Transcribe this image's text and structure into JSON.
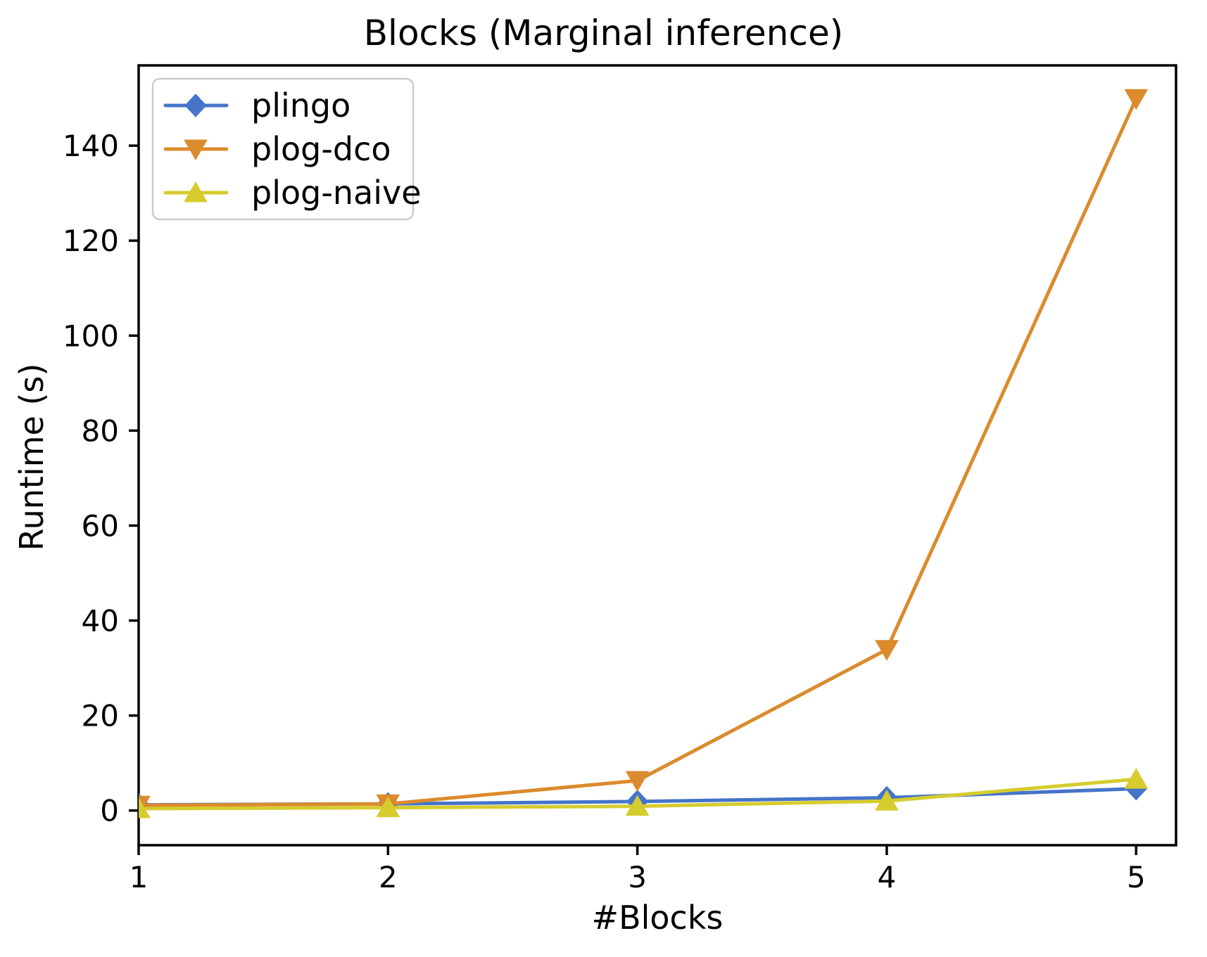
{
  "chart_data": {
    "type": "line",
    "title": "Blocks (Marginal inference)",
    "xlabel": "#Blocks",
    "ylabel": "Runtime (s)",
    "x": [
      1,
      2,
      3,
      4,
      5
    ],
    "xticks": [
      1,
      2,
      3,
      4,
      5
    ],
    "yticks": [
      0,
      20,
      40,
      60,
      80,
      100,
      120,
      140
    ],
    "xlim": [
      1,
      5.16
    ],
    "ylim": [
      -7.3,
      156.9
    ],
    "grid": false,
    "legend_position": "upper left",
    "series": [
      {
        "name": "plingo",
        "color": "#4574C9",
        "marker": "diamond",
        "values": [
          1.2,
          1.4,
          1.9,
          2.7,
          4.6
        ]
      },
      {
        "name": "plog-dco",
        "color": "#DB8B2D",
        "marker": "triangle-down",
        "values": [
          1.1,
          1.4,
          6.3,
          33.9,
          149.9
        ]
      },
      {
        "name": "plog-naive",
        "color": "#D6CC2E",
        "marker": "triangle-up",
        "values": [
          0.4,
          0.6,
          0.9,
          2.0,
          6.6
        ]
      }
    ],
    "axis_color": "#000000",
    "legend_border_color": "#cccccc",
    "background_color": "#ffffff"
  }
}
